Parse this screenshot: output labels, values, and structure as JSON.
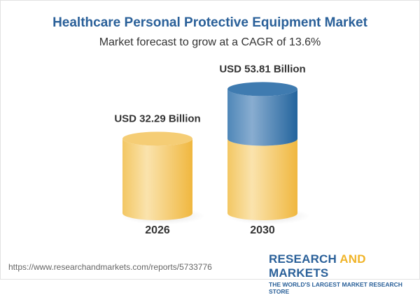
{
  "chart_data": {
    "type": "bar",
    "title": "Healthcare Personal Protective Equipment Market",
    "subtitle": "Market forecast to grow at a CAGR of 13.6%",
    "categories": [
      "2026",
      "2030"
    ],
    "values": [
      32.29,
      53.81
    ],
    "data_labels": [
      "USD 32.29 Billion",
      "USD 53.81 Billion"
    ],
    "style": "3d-cylinder",
    "colors": {
      "base": "#f3c35c",
      "growth": "#2e6da4",
      "title": "#2a6099"
    },
    "grid": false
  },
  "footer": {
    "url": "https://www.researchandmarkets.com/reports/5733776",
    "logo_word1": "RESEARCH ",
    "logo_word2": "AND",
    "logo_word3": " MARKETS",
    "logo_tagline": "THE WORLD'S LARGEST MARKET RESEARCH STORE"
  }
}
